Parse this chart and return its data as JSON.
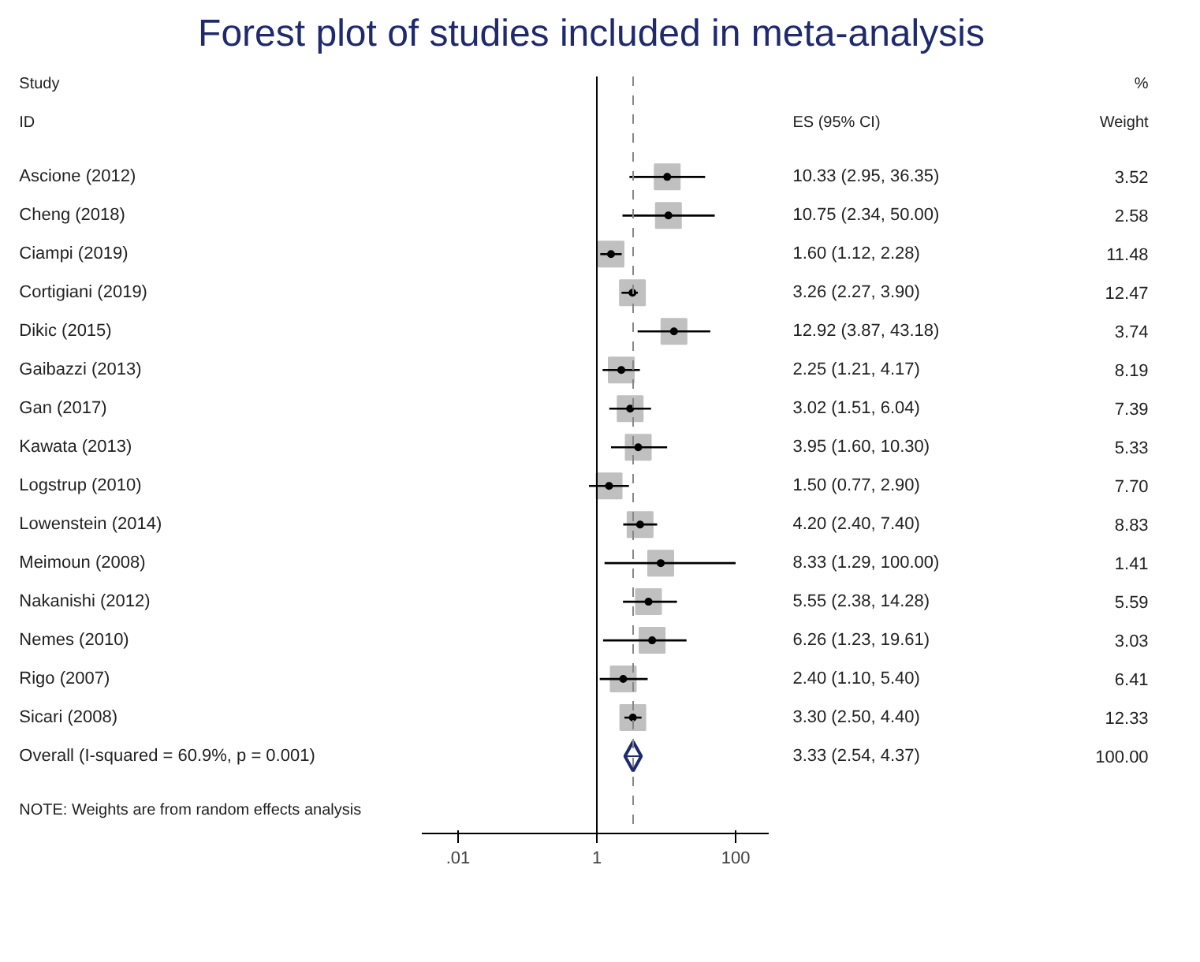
{
  "chart_data": {
    "type": "scatter",
    "orientation": "horizontal",
    "title": "Forest plot of studies included in meta-analysis",
    "categories": [
      "Ascione (2012)",
      "Cheng (2018)",
      "Ciampi (2019)",
      "Cortigiani (2019)",
      "Dikic (2015)",
      "Gaibazzi (2013)",
      "Gan (2017)",
      "Kawata (2013)",
      "Logstrup (2010)",
      "Lowenstein (2014)",
      "Meimoun (2008)",
      "Nakanishi (2012)",
      "Nemes (2010)",
      "Rigo (2007)",
      "Sicari (2008)",
      "Overall  (I-squared = 60.9%, p = 0.001)"
    ],
    "series": [
      {
        "type": "scatter",
        "marker": "square",
        "color": "#c0c0c0",
        "values": [
          10.33,
          10.75,
          1.6,
          3.26,
          12.92,
          2.25,
          3.02,
          3.95,
          1.5,
          4.2,
          8.33,
          5.55,
          6.26,
          2.4,
          3.3,
          null
        ],
        "errors": [
          [
            2.95,
            36.35
          ],
          [
            2.34,
            50.0
          ],
          [
            1.12,
            2.28
          ],
          [
            2.27,
            3.9
          ],
          [
            3.87,
            43.18
          ],
          [
            1.21,
            4.17
          ],
          [
            1.51,
            6.04
          ],
          [
            1.6,
            10.3
          ],
          [
            0.77,
            2.9
          ],
          [
            2.4,
            7.4
          ],
          [
            1.29,
            100.0
          ],
          [
            2.38,
            14.28
          ],
          [
            1.23,
            19.61
          ],
          [
            1.1,
            5.4
          ],
          [
            2.5,
            4.4
          ],
          null
        ]
      },
      {
        "type": "scatter",
        "marker": "diamond",
        "color": "#1f2a6e",
        "values": [
          null,
          null,
          null,
          null,
          null,
          null,
          null,
          null,
          null,
          null,
          null,
          null,
          null,
          null,
          null,
          3.33
        ],
        "errors": [
          null,
          null,
          null,
          null,
          null,
          null,
          null,
          null,
          null,
          null,
          null,
          null,
          null,
          null,
          null,
          [
            2.54,
            4.37
          ]
        ]
      }
    ],
    "log": "x",
    "xlim": [
      0.003,
      300
    ],
    "xticks": [
      {
        "value": 0.01,
        "label": ".01"
      },
      1,
      100
    ],
    "grid": false,
    "ref_lines": [
      {
        "axis": "x",
        "value": 1,
        "color": "#000000",
        "line_style": "solid"
      },
      {
        "axis": "x",
        "value": 3.33,
        "color": "#888888",
        "line_style": "dashed"
      }
    ],
    "annotations": [
      "Study",
      "ID",
      "ES (95% CI)",
      "%",
      "Weight",
      "10.33 (2.95, 36.35)",
      "10.75 (2.34, 50.00)",
      "1.60 (1.12, 2.28)",
      "3.26 (2.27, 3.90)",
      "12.92 (3.87, 43.18)",
      "2.25 (1.21, 4.17)",
      "3.02 (1.51, 6.04)",
      "3.95 (1.60, 10.30)",
      "1.50 (0.77, 2.90)",
      "4.20 (2.40, 7.40)",
      "8.33 (1.29, 100.00)",
      "5.55 (2.38, 14.28)",
      "6.26 (1.23, 19.61)",
      "2.40 (1.10, 5.40)",
      "3.30 (2.50, 4.40)",
      "3.33 (2.54, 4.37)",
      "3.52",
      "2.58",
      "11.48",
      "12.47",
      "3.74",
      "8.19",
      "7.39",
      "5.33",
      "7.70",
      "8.83",
      "1.41",
      "5.59",
      "3.03",
      "6.41",
      "12.33",
      "100.00",
      "NOTE: Weights are from random effects analysis"
    ]
  }
}
